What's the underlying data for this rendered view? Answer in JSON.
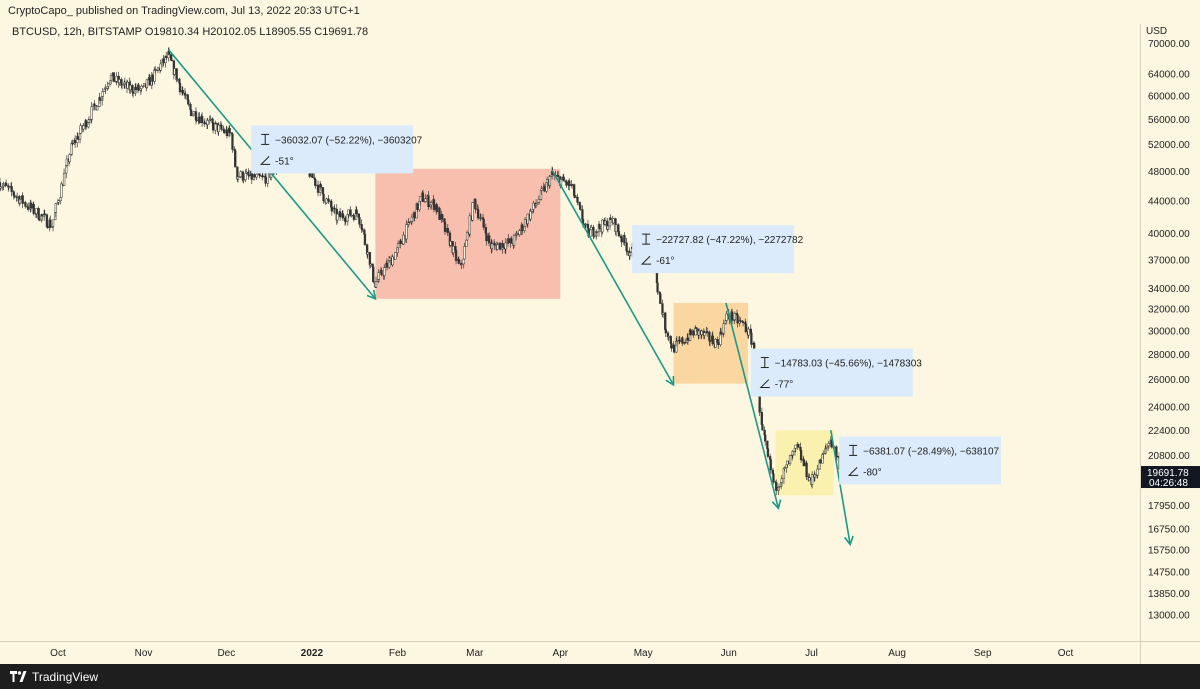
{
  "header": {
    "publisher": "CryptoCapo_ published on TradingView.com, Jul 13, 2022 20:33 UTC+1"
  },
  "footer": {
    "brand": "TradingView"
  },
  "colors": {
    "background": "#fdf7e1",
    "candle": "#333333",
    "arrow": "#1b9a86",
    "box_red": "#f7b8a8",
    "box_orange": "#fad29a",
    "box_yellow": "#faf0a8",
    "label_bg": "#dcebfb",
    "price_tag": "#131722"
  },
  "chart_data": {
    "type": "candlestick",
    "symbol_line": "BTCUSD, 12h, BITSTAMP  O19810.34  H20102.05  L18905.55  C19691.78",
    "currency": "USD",
    "y_scale": "log",
    "x_range": [
      "2021-09-10",
      "2022-10-28"
    ],
    "y_ticks": [
      70000,
      64000,
      60000,
      56000,
      52000,
      48000,
      44000,
      40000,
      37000,
      34000,
      32000,
      30000,
      28000,
      26000,
      24000,
      22400,
      20800,
      17950,
      16750,
      15750,
      14750,
      13850,
      13000
    ],
    "y_tick_labels": [
      "70000.00",
      "64000.00",
      "60000.00",
      "56000.00",
      "52000.00",
      "48000.00",
      "44000.00",
      "40000.00",
      "37000.00",
      "34000.00",
      "32000.00",
      "30000.00",
      "28000.00",
      "26000.00",
      "24000.00",
      "22400.00",
      "20800.00",
      "17950.00",
      "16750.00",
      "15750.00",
      "14750.00",
      "13850.00",
      "13000.00"
    ],
    "x_ticks": [
      {
        "label": "Oct",
        "date": "2021-10-01",
        "bold": false
      },
      {
        "label": "Nov",
        "date": "2021-11-01",
        "bold": false
      },
      {
        "label": "Dec",
        "date": "2021-12-01",
        "bold": false
      },
      {
        "label": "2022",
        "date": "2022-01-01",
        "bold": true
      },
      {
        "label": "Feb",
        "date": "2022-02-01",
        "bold": false
      },
      {
        "label": "Mar",
        "date": "2022-03-01",
        "bold": false
      },
      {
        "label": "Apr",
        "date": "2022-04-01",
        "bold": false
      },
      {
        "label": "May",
        "date": "2022-05-01",
        "bold": false
      },
      {
        "label": "Jun",
        "date": "2022-06-01",
        "bold": false
      },
      {
        "label": "Jul",
        "date": "2022-07-01",
        "bold": false
      },
      {
        "label": "Aug",
        "date": "2022-08-01",
        "bold": false
      },
      {
        "label": "Sep",
        "date": "2022-09-01",
        "bold": false
      },
      {
        "label": "Oct",
        "date": "2022-10-01",
        "bold": false
      }
    ],
    "price_path": [
      [
        "2021-09-10",
        46500
      ],
      [
        "2021-09-20",
        43500
      ],
      [
        "2021-09-29",
        41000
      ],
      [
        "2021-10-06",
        51500
      ],
      [
        "2021-10-15",
        58500
      ],
      [
        "2021-10-20",
        63500
      ],
      [
        "2021-10-26",
        61500
      ],
      [
        "2021-11-01",
        61000
      ],
      [
        "2021-11-10",
        67500
      ],
      [
        "2021-11-18",
        57500
      ],
      [
        "2021-11-26",
        55000
      ],
      [
        "2021-12-03",
        53500
      ],
      [
        "2021-12-05",
        47500
      ],
      [
        "2021-12-15",
        47000
      ],
      [
        "2021-12-27",
        51000
      ],
      [
        "2022-01-01",
        47500
      ],
      [
        "2022-01-10",
        42000
      ],
      [
        "2022-01-18",
        42500
      ],
      [
        "2022-01-24",
        34500
      ],
      [
        "2022-02-01",
        38000
      ],
      [
        "2022-02-10",
        44500
      ],
      [
        "2022-02-15",
        43500
      ],
      [
        "2022-02-24",
        36000
      ],
      [
        "2022-03-01",
        44000
      ],
      [
        "2022-03-07",
        38500
      ],
      [
        "2022-03-15",
        39000
      ],
      [
        "2022-03-24",
        44000
      ],
      [
        "2022-03-29",
        47500
      ],
      [
        "2022-04-05",
        46000
      ],
      [
        "2022-04-11",
        40000
      ],
      [
        "2022-04-20",
        41500
      ],
      [
        "2022-04-26",
        38000
      ],
      [
        "2022-05-05",
        36500
      ],
      [
        "2022-05-09",
        30500
      ],
      [
        "2022-05-12",
        28500
      ],
      [
        "2022-05-20",
        30000
      ],
      [
        "2022-05-28",
        29000
      ],
      [
        "2022-06-01",
        31500
      ],
      [
        "2022-06-07",
        30500
      ],
      [
        "2022-06-10",
        29000
      ],
      [
        "2022-06-13",
        22500
      ],
      [
        "2022-06-18",
        18900
      ],
      [
        "2022-06-26",
        21300
      ],
      [
        "2022-07-01",
        19200
      ],
      [
        "2022-07-08",
        21800
      ],
      [
        "2022-07-13",
        19691.78
      ]
    ],
    "boxes": [
      {
        "name": "box-red",
        "x0": "2022-01-24",
        "x1": "2022-04-01",
        "y0": 33000,
        "y1": 48400,
        "color": "#f7b8a8"
      },
      {
        "name": "box-orange",
        "x0": "2022-05-12",
        "x1": "2022-06-08",
        "y0": 25700,
        "y1": 32600,
        "color": "#fad29a"
      },
      {
        "name": "box-yellow",
        "x0": "2022-06-18",
        "x1": "2022-07-09",
        "y0": 18500,
        "y1": 22400,
        "color": "#faf0a8"
      }
    ],
    "arrows": [
      {
        "name": "arrow-1",
        "from": [
          "2021-11-10",
          68800
        ],
        "to": [
          "2022-01-24",
          33000
        ]
      },
      {
        "name": "arrow-2",
        "from": [
          "2022-03-29",
          48200
        ],
        "to": [
          "2022-05-12",
          25600
        ]
      },
      {
        "name": "arrow-3",
        "from": [
          "2022-05-31",
          32600
        ],
        "to": [
          "2022-06-19",
          17800
        ]
      },
      {
        "name": "arrow-4",
        "from": [
          "2022-07-08",
          22400
        ],
        "to": [
          "2022-07-15",
          16000
        ]
      }
    ],
    "measurements": [
      {
        "name": "measure-1",
        "x": "2021-12-10",
        "y": 55000,
        "range": "−36032.07 (−52.22%), −3603207",
        "angle": "-51°"
      },
      {
        "name": "measure-2",
        "x": "2022-04-27",
        "y": 41000,
        "range": "−22727.82 (−47.22%), −2272782",
        "angle": "-61°"
      },
      {
        "name": "measure-3",
        "x": "2022-06-09",
        "y": 28500,
        "range": "−14783.03 (−45.66%), −1478303",
        "angle": "-77°"
      },
      {
        "name": "measure-4",
        "x": "2022-07-11",
        "y": 22000,
        "range": "−6381.07 (−28.49%), −638107",
        "angle": "-80°"
      }
    ],
    "last_price": {
      "value": 19691.78,
      "label": "19691.78",
      "countdown": "04:26:48"
    }
  }
}
